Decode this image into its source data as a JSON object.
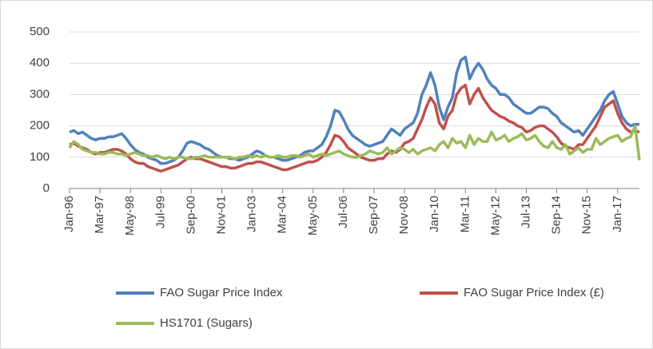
{
  "chart_data": {
    "type": "line",
    "categories": [
      "Jan-96",
      null,
      null,
      null,
      null,
      null,
      null,
      "Mar-97",
      null,
      null,
      null,
      null,
      null,
      null,
      "May-98",
      null,
      null,
      null,
      null,
      null,
      null,
      "Jul-99",
      null,
      null,
      null,
      null,
      null,
      null,
      "Sep-00",
      null,
      null,
      null,
      null,
      null,
      null,
      "Nov-01",
      null,
      null,
      null,
      null,
      null,
      null,
      "Jan-03",
      null,
      null,
      null,
      null,
      null,
      null,
      "Mar-04",
      null,
      null,
      null,
      null,
      null,
      null,
      "May-05",
      null,
      null,
      null,
      null,
      null,
      null,
      "Jul-06",
      null,
      null,
      null,
      null,
      null,
      null,
      "Sep-07",
      null,
      null,
      null,
      null,
      null,
      null,
      "Nov-08",
      null,
      null,
      null,
      null,
      null,
      null,
      "Jan-10",
      null,
      null,
      null,
      null,
      null,
      null,
      "Mar-11",
      null,
      null,
      null,
      null,
      null,
      null,
      "May-12",
      null,
      null,
      null,
      null,
      null,
      null,
      "Jul-13",
      null,
      null,
      null,
      null,
      null,
      null,
      "Sep-14",
      null,
      null,
      null,
      null,
      null,
      null,
      "Nov-15",
      null,
      null,
      null,
      null,
      null,
      null,
      "Jan-17",
      null,
      null,
      null,
      null,
      null
    ],
    "series": [
      {
        "name": "FAO Sugar Price Index",
        "color": "#4f81bd",
        "values": [
          180,
          185,
          175,
          180,
          170,
          160,
          155,
          160,
          160,
          165,
          165,
          170,
          175,
          160,
          140,
          125,
          115,
          110,
          100,
          95,
          90,
          80,
          80,
          85,
          90,
          100,
          120,
          145,
          150,
          145,
          140,
          130,
          125,
          115,
          105,
          100,
          100,
          95,
          95,
          90,
          95,
          100,
          110,
          120,
          115,
          105,
          100,
          100,
          95,
          90,
          90,
          95,
          100,
          105,
          115,
          120,
          120,
          130,
          140,
          165,
          200,
          250,
          245,
          220,
          190,
          170,
          160,
          150,
          140,
          135,
          140,
          145,
          150,
          170,
          190,
          180,
          170,
          190,
          200,
          210,
          240,
          300,
          330,
          370,
          330,
          260,
          220,
          260,
          290,
          370,
          410,
          420,
          350,
          380,
          400,
          380,
          350,
          330,
          320,
          300,
          300,
          290,
          270,
          260,
          250,
          240,
          240,
          250,
          260,
          260,
          255,
          240,
          230,
          210,
          200,
          190,
          180,
          185,
          170,
          190,
          210,
          230,
          250,
          280,
          300,
          310,
          270,
          230,
          210,
          200,
          205,
          205
        ]
      },
      {
        "name": "FAO Sugar Price Index (£)",
        "color": "#c0504d",
        "values": [
          140,
          145,
          135,
          130,
          125,
          115,
          110,
          115,
          115,
          120,
          125,
          125,
          120,
          110,
          95,
          85,
          80,
          80,
          70,
          65,
          60,
          55,
          60,
          65,
          70,
          75,
          85,
          95,
          100,
          95,
          95,
          90,
          85,
          80,
          75,
          70,
          70,
          65,
          65,
          70,
          75,
          80,
          80,
          85,
          85,
          80,
          75,
          70,
          65,
          60,
          60,
          65,
          70,
          75,
          80,
          85,
          85,
          90,
          100,
          115,
          140,
          170,
          165,
          150,
          130,
          120,
          110,
          100,
          95,
          90,
          90,
          95,
          95,
          110,
          120,
          115,
          125,
          145,
          150,
          160,
          190,
          220,
          260,
          290,
          270,
          210,
          190,
          230,
          250,
          300,
          320,
          330,
          270,
          300,
          320,
          290,
          270,
          250,
          240,
          230,
          225,
          215,
          210,
          200,
          195,
          180,
          185,
          195,
          200,
          200,
          190,
          180,
          165,
          145,
          135,
          130,
          125,
          140,
          140,
          160,
          180,
          200,
          230,
          260,
          270,
          280,
          240,
          210,
          190,
          180,
          185,
          180
        ]
      },
      {
        "name": "HS1701 (Sugars)",
        "color": "#9bbb59",
        "values": [
          130,
          150,
          140,
          125,
          120,
          115,
          115,
          110,
          110,
          115,
          115,
          110,
          110,
          105,
          110,
          115,
          110,
          105,
          105,
          100,
          105,
          100,
          95,
          100,
          95,
          100,
          100,
          95,
          95,
          100,
          100,
          105,
          100,
          100,
          100,
          100,
          100,
          100,
          95,
          100,
          100,
          105,
          100,
          105,
          100,
          105,
          100,
          100,
          105,
          100,
          100,
          105,
          105,
          100,
          105,
          110,
          100,
          105,
          110,
          105,
          110,
          115,
          120,
          110,
          105,
          100,
          100,
          105,
          110,
          120,
          115,
          110,
          115,
          130,
          110,
          120,
          130,
          125,
          115,
          125,
          110,
          120,
          125,
          130,
          120,
          140,
          150,
          130,
          160,
          145,
          150,
          130,
          170,
          140,
          160,
          150,
          150,
          180,
          155,
          160,
          170,
          150,
          160,
          165,
          175,
          155,
          160,
          170,
          150,
          135,
          130,
          150,
          130,
          125,
          140,
          110,
          120,
          130,
          115,
          125,
          125,
          160,
          140,
          150,
          160,
          165,
          170,
          150,
          160,
          165,
          200,
          90
        ]
      }
    ],
    "ylim": [
      0,
      500
    ],
    "yticks": [
      0,
      100,
      200,
      300,
      400,
      500
    ],
    "grid": true
  }
}
